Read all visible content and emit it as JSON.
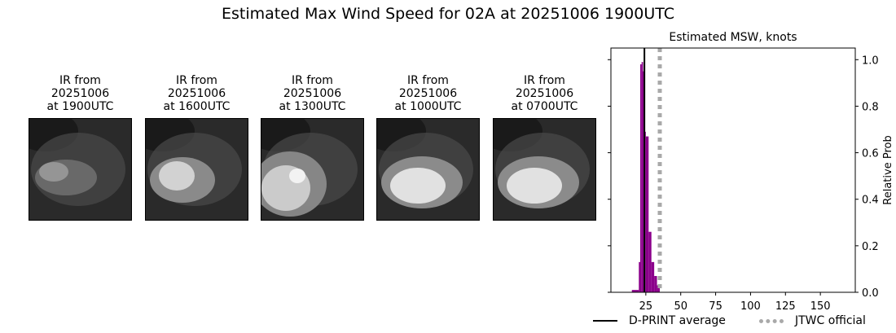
{
  "title": "Estimated Max Wind Speed for 02A at 20251006 1900UTC",
  "ir_panels": [
    {
      "line1": "IR from",
      "line2": "20251006",
      "line3": "at 1900UTC",
      "blob": "faint"
    },
    {
      "line1": "IR from",
      "line2": "20251006",
      "line3": "at 1600UTC",
      "blob": "medium"
    },
    {
      "line1": "IR from",
      "line2": "20251006",
      "line3": "at 1300UTC",
      "blob": "eye"
    },
    {
      "line1": "IR from",
      "line2": "20251006",
      "line3": "at 1000UTC",
      "blob": "bright"
    },
    {
      "line1": "IR from",
      "line2": "20251006",
      "line3": "at 0700UTC",
      "blob": "bright"
    }
  ],
  "chart_data": {
    "type": "bar",
    "title": "Estimated MSW, knots",
    "xlabel": "",
    "ylabel": "Relative Prob",
    "xlim": [
      0,
      175
    ],
    "ylim": [
      0,
      1.05
    ],
    "xticks": [
      25,
      50,
      75,
      100,
      125,
      150
    ],
    "yticks": [
      0.0,
      0.2,
      0.4,
      0.6,
      0.8,
      1.0
    ],
    "bar_color": "#8b008b",
    "bins": [
      {
        "x0": 15,
        "x1": 20,
        "value": 0.01
      },
      {
        "x0": 20,
        "x1": 21,
        "value": 0.13
      },
      {
        "x0": 21,
        "x1": 22,
        "value": 0.98
      },
      {
        "x0": 22,
        "x1": 23,
        "value": 0.99
      },
      {
        "x0": 23,
        "x1": 24,
        "value": 0.95
      },
      {
        "x0": 24,
        "x1": 25,
        "value": 0.69
      },
      {
        "x0": 25,
        "x1": 27,
        "value": 0.67
      },
      {
        "x0": 27,
        "x1": 29,
        "value": 0.26
      },
      {
        "x0": 29,
        "x1": 31,
        "value": 0.13
      },
      {
        "x0": 31,
        "x1": 33,
        "value": 0.07
      },
      {
        "x0": 33,
        "x1": 35,
        "value": 0.03
      }
    ],
    "dprint_average": 24,
    "jtwc_official": 35,
    "legend": {
      "dprint": "D-PRINT average",
      "jtwc": "JTWC official"
    },
    "colors": {
      "dprint": "#000000",
      "jtwc": "#a9a9a9"
    }
  }
}
